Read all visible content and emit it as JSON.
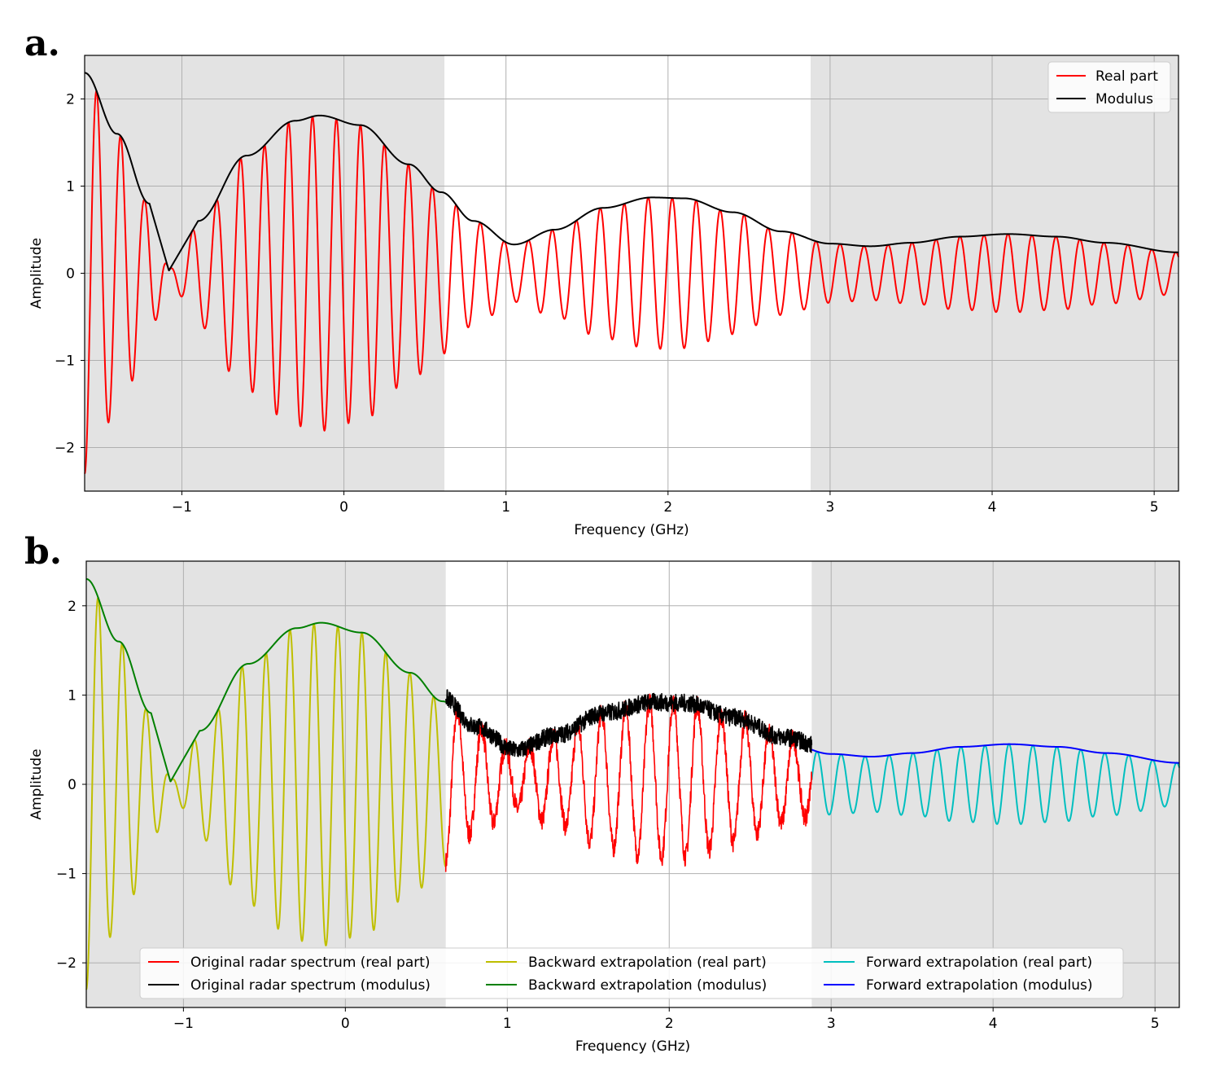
{
  "panels": [
    {
      "label": "a.",
      "xlabel": "Frequency (GHz)",
      "ylabel": "Amplitude"
    },
    {
      "label": "b.",
      "xlabel": "Frequency (GHz)",
      "ylabel": "Amplitude"
    }
  ],
  "chart_data": [
    {
      "type": "line",
      "panel": "a.",
      "xlabel": "Frequency (GHz)",
      "ylabel": "Amplitude",
      "xlim": [
        -1.6,
        5.15
      ],
      "ylim": [
        -2.5,
        2.5
      ],
      "xticks": [
        -1,
        0,
        1,
        2,
        3,
        4,
        5
      ],
      "yticks": [
        -2,
        -1,
        0,
        1,
        2
      ],
      "grid": true,
      "shaded_x_ranges": [
        [
          -1.6,
          0.62
        ],
        [
          2.88,
          5.15
        ]
      ],
      "legend_position": "top-right",
      "legend": [
        "Real part",
        "Modulus"
      ],
      "series": [
        {
          "name": "Real part",
          "color": "#ff0000",
          "kind": "oscillation",
          "period_GHz": 0.148,
          "note_peaks_follow_modulus": true
        },
        {
          "name": "Modulus",
          "color": "#000000",
          "x": [
            -1.6,
            -1.4,
            -1.2,
            -1.08,
            -0.9,
            -0.6,
            -0.3,
            -0.15,
            0.1,
            0.4,
            0.6,
            0.8,
            1.05,
            1.3,
            1.6,
            1.9,
            2.1,
            2.4,
            2.7,
            3.0,
            3.25,
            3.5,
            3.8,
            4.1,
            4.4,
            4.7,
            5.15
          ],
          "y": [
            2.3,
            1.6,
            0.8,
            0.03,
            0.6,
            1.35,
            1.75,
            1.81,
            1.7,
            1.25,
            0.93,
            0.6,
            0.33,
            0.5,
            0.75,
            0.87,
            0.86,
            0.7,
            0.48,
            0.34,
            0.31,
            0.35,
            0.42,
            0.45,
            0.42,
            0.35,
            0.24
          ]
        }
      ]
    },
    {
      "type": "line",
      "panel": "b.",
      "xlabel": "Frequency (GHz)",
      "ylabel": "Amplitude",
      "xlim": [
        -1.6,
        5.15
      ],
      "ylim": [
        -2.5,
        2.5
      ],
      "xticks": [
        -1,
        0,
        1,
        2,
        3,
        4,
        5
      ],
      "yticks": [
        -2,
        -1,
        0,
        1,
        2
      ],
      "grid": true,
      "shaded_x_ranges": [
        [
          -1.6,
          0.62
        ],
        [
          2.88,
          5.15
        ]
      ],
      "legend_position": "bottom-center",
      "legend": [
        "Original radar spectrum (real part)",
        "Original radar spectrum (modulus)",
        "Backward extrapolation (real part)",
        "Backward extrapolation (modulus)",
        "Forward extrapolation (real part)",
        "Forward extrapolation (modulus)"
      ],
      "series": [
        {
          "name": "Original radar spectrum (real part)",
          "color": "#ff0000",
          "x_range": [
            0.62,
            2.88
          ],
          "noisy": true
        },
        {
          "name": "Original radar spectrum (modulus)",
          "color": "#000000",
          "x_range": [
            0.62,
            2.88
          ],
          "noisy": true
        },
        {
          "name": "Backward extrapolation (real part)",
          "color": "#bfbf00",
          "x_range": [
            -1.6,
            0.62
          ]
        },
        {
          "name": "Backward extrapolation (modulus)",
          "color": "#008000",
          "x_range": [
            -1.6,
            0.62
          ]
        },
        {
          "name": "Forward extrapolation (real part)",
          "color": "#00bfbf",
          "x_range": [
            2.88,
            5.15
          ]
        },
        {
          "name": "Forward extrapolation (modulus)",
          "color": "#0000ff",
          "x_range": [
            2.88,
            5.15
          ]
        }
      ]
    }
  ]
}
